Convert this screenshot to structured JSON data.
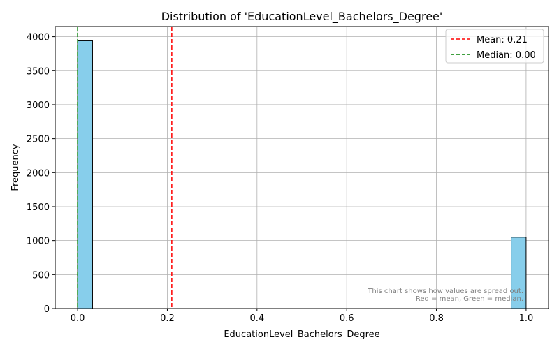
{
  "chart_data": {
    "type": "bar",
    "title": "Distribution of 'EducationLevel_Bachelors_Degree'",
    "xlabel": "EducationLevel_Bachelors_Degree",
    "ylabel": "Frequency",
    "xlim": [
      -0.05,
      1.05
    ],
    "ylim": [
      0,
      4150
    ],
    "x_ticks": [
      0.0,
      0.2,
      0.4,
      0.6,
      0.8,
      1.0
    ],
    "x_tick_labels": [
      "0.0",
      "0.2",
      "0.4",
      "0.6",
      "0.8",
      "1.0"
    ],
    "y_ticks": [
      0,
      500,
      1000,
      1500,
      2000,
      2500,
      3000,
      3500,
      4000
    ],
    "y_tick_labels": [
      "0",
      "500",
      "1000",
      "1500",
      "2000",
      "2500",
      "3000",
      "3500",
      "4000"
    ],
    "grid": true,
    "bin_width": 0.0333,
    "bins": [
      {
        "x": 0.0,
        "count": 3940
      },
      {
        "x": 0.9667,
        "count": 1050
      }
    ],
    "bar_color": "#87CEEB",
    "bar_edge_color": "#000000",
    "reference_lines": [
      {
        "label": "Mean: 0.21",
        "value": 0.21,
        "color": "#ff0000",
        "style": "dashed"
      },
      {
        "label": "Median: 0.00",
        "value": 0.0,
        "color": "#008000",
        "style": "dashed"
      }
    ],
    "legend_position": "top-right",
    "annotation": {
      "line1": "This chart shows how values are spread out.",
      "line2": "Red = mean, Green = median."
    }
  }
}
